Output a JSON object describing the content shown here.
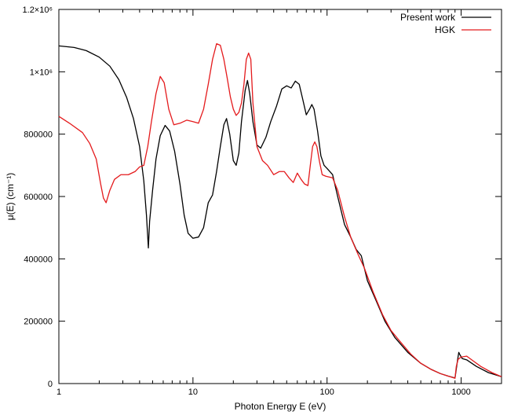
{
  "chart_data": {
    "type": "line",
    "title": "",
    "xlabel": "Photon Energy E (eV)",
    "ylabel": "μ(E) (cm⁻¹)",
    "xscale": "log",
    "xlim": [
      1,
      2000
    ],
    "ylim": [
      0,
      1200000
    ],
    "grid": false,
    "legend_position": "top-right",
    "x_ticks": [
      {
        "value": 1,
        "label": "1"
      },
      {
        "value": 10,
        "label": "10"
      },
      {
        "value": 100,
        "label": "100"
      },
      {
        "value": 1000,
        "label": "1000"
      }
    ],
    "y_ticks": [
      {
        "value": 0,
        "label": "0"
      },
      {
        "value": 200000,
        "label": "200000"
      },
      {
        "value": 400000,
        "label": "400000"
      },
      {
        "value": 600000,
        "label": "600000"
      },
      {
        "value": 800000,
        "label": "800000"
      },
      {
        "value": 1000000,
        "label": "1×10⁶"
      },
      {
        "value": 1200000,
        "label": "1.2×10⁶"
      }
    ],
    "series": [
      {
        "name": "Present work",
        "color": "#000000",
        "points": [
          [
            1.0,
            1083000
          ],
          [
            1.3,
            1078000
          ],
          [
            1.6,
            1068000
          ],
          [
            2.0,
            1047000
          ],
          [
            2.4,
            1018000
          ],
          [
            2.8,
            975000
          ],
          [
            3.2,
            918000
          ],
          [
            3.6,
            850000
          ],
          [
            4.0,
            760000
          ],
          [
            4.3,
            650000
          ],
          [
            4.5,
            540000
          ],
          [
            4.65,
            435000
          ],
          [
            4.75,
            520000
          ],
          [
            5.0,
            620000
          ],
          [
            5.3,
            720000
          ],
          [
            5.7,
            795000
          ],
          [
            6.2,
            828000
          ],
          [
            6.7,
            810000
          ],
          [
            7.3,
            745000
          ],
          [
            8.0,
            640000
          ],
          [
            8.6,
            540000
          ],
          [
            9.2,
            482000
          ],
          [
            10.0,
            466000
          ],
          [
            11.0,
            470000
          ],
          [
            12.0,
            500000
          ],
          [
            13.0,
            580000
          ],
          [
            14.0,
            605000
          ],
          [
            15.0,
            680000
          ],
          [
            16.0,
            760000
          ],
          [
            17.0,
            830000
          ],
          [
            17.8,
            850000
          ],
          [
            18.8,
            800000
          ],
          [
            20.0,
            715000
          ],
          [
            21.0,
            700000
          ],
          [
            22.0,
            740000
          ],
          [
            23.0,
            840000
          ],
          [
            24.5,
            940000
          ],
          [
            25.5,
            972000
          ],
          [
            26.5,
            930000
          ],
          [
            28.0,
            840000
          ],
          [
            30.0,
            765000
          ],
          [
            32.0,
            755000
          ],
          [
            35.0,
            790000
          ],
          [
            38.0,
            840000
          ],
          [
            42.0,
            890000
          ],
          [
            46.0,
            945000
          ],
          [
            50.0,
            955000
          ],
          [
            54.0,
            948000
          ],
          [
            58.0,
            970000
          ],
          [
            62.0,
            960000
          ],
          [
            66.0,
            910000
          ],
          [
            70.0,
            862000
          ],
          [
            74.0,
            880000
          ],
          [
            77.0,
            895000
          ],
          [
            80.0,
            880000
          ],
          [
            85.0,
            810000
          ],
          [
            90.0,
            730000
          ],
          [
            95.0,
            700000
          ],
          [
            100.0,
            690000
          ],
          [
            110.0,
            670000
          ],
          [
            120.0,
            600000
          ],
          [
            135.0,
            510000
          ],
          [
            150.0,
            470000
          ],
          [
            165.0,
            430000
          ],
          [
            180.0,
            410000
          ],
          [
            200.0,
            330000
          ],
          [
            230.0,
            270000
          ],
          [
            270.0,
            200000
          ],
          [
            320.0,
            148000
          ],
          [
            400.0,
            100000
          ],
          [
            500.0,
            65000
          ],
          [
            600.0,
            45000
          ],
          [
            700.0,
            32000
          ],
          [
            800.0,
            24000
          ],
          [
            900.0,
            18000
          ],
          [
            940.0,
            75000
          ],
          [
            960.0,
            100000
          ],
          [
            980.0,
            92000
          ],
          [
            1020.0,
            80000
          ],
          [
            1100.0,
            76000
          ],
          [
            1300.0,
            55000
          ],
          [
            1600.0,
            35000
          ],
          [
            2000.0,
            22000
          ]
        ]
      },
      {
        "name": "HGK",
        "color": "#e41a1c",
        "points": [
          [
            1.0,
            857000
          ],
          [
            1.2,
            835000
          ],
          [
            1.5,
            805000
          ],
          [
            1.7,
            770000
          ],
          [
            1.9,
            720000
          ],
          [
            2.05,
            640000
          ],
          [
            2.15,
            595000
          ],
          [
            2.25,
            580000
          ],
          [
            2.4,
            620000
          ],
          [
            2.6,
            655000
          ],
          [
            2.9,
            670000
          ],
          [
            3.3,
            670000
          ],
          [
            3.7,
            680000
          ],
          [
            4.0,
            695000
          ],
          [
            4.3,
            700000
          ],
          [
            4.6,
            760000
          ],
          [
            4.9,
            840000
          ],
          [
            5.3,
            930000
          ],
          [
            5.7,
            985000
          ],
          [
            6.1,
            965000
          ],
          [
            6.6,
            880000
          ],
          [
            7.2,
            830000
          ],
          [
            8.0,
            835000
          ],
          [
            9.0,
            845000
          ],
          [
            10.0,
            840000
          ],
          [
            11.0,
            835000
          ],
          [
            12.0,
            880000
          ],
          [
            13.0,
            960000
          ],
          [
            14.0,
            1040000
          ],
          [
            15.0,
            1090000
          ],
          [
            16.0,
            1085000
          ],
          [
            17.0,
            1040000
          ],
          [
            18.0,
            980000
          ],
          [
            19.0,
            920000
          ],
          [
            20.0,
            880000
          ],
          [
            21.0,
            860000
          ],
          [
            22.0,
            870000
          ],
          [
            23.0,
            900000
          ],
          [
            24.0,
            960000
          ],
          [
            25.0,
            1040000
          ],
          [
            26.0,
            1060000
          ],
          [
            27.0,
            1040000
          ],
          [
            28.0,
            900000
          ],
          [
            30.0,
            760000
          ],
          [
            33.0,
            715000
          ],
          [
            36.0,
            700000
          ],
          [
            40.0,
            670000
          ],
          [
            44.0,
            680000
          ],
          [
            48.0,
            680000
          ],
          [
            52.0,
            660000
          ],
          [
            56.0,
            645000
          ],
          [
            60.0,
            675000
          ],
          [
            64.0,
            655000
          ],
          [
            68.0,
            640000
          ],
          [
            72.0,
            635000
          ],
          [
            75.0,
            700000
          ],
          [
            78.0,
            760000
          ],
          [
            81.0,
            775000
          ],
          [
            84.0,
            760000
          ],
          [
            88.0,
            710000
          ],
          [
            92.0,
            670000
          ],
          [
            98.0,
            665000
          ],
          [
            110.0,
            660000
          ],
          [
            120.0,
            620000
          ],
          [
            135.0,
            535000
          ],
          [
            150.0,
            470000
          ],
          [
            170.0,
            415000
          ],
          [
            190.0,
            370000
          ],
          [
            220.0,
            295000
          ],
          [
            260.0,
            220000
          ],
          [
            300.0,
            170000
          ],
          [
            350.0,
            135000
          ],
          [
            420.0,
            95000
          ],
          [
            500.0,
            65000
          ],
          [
            600.0,
            45000
          ],
          [
            700.0,
            32000
          ],
          [
            800.0,
            24000
          ],
          [
            900.0,
            17000
          ],
          [
            920.0,
            55000
          ],
          [
            950.0,
            78000
          ],
          [
            1000.0,
            85000
          ],
          [
            1100.0,
            88000
          ],
          [
            1200.0,
            76000
          ],
          [
            1400.0,
            55000
          ],
          [
            1700.0,
            35000
          ],
          [
            2000.0,
            22000
          ]
        ]
      }
    ]
  }
}
